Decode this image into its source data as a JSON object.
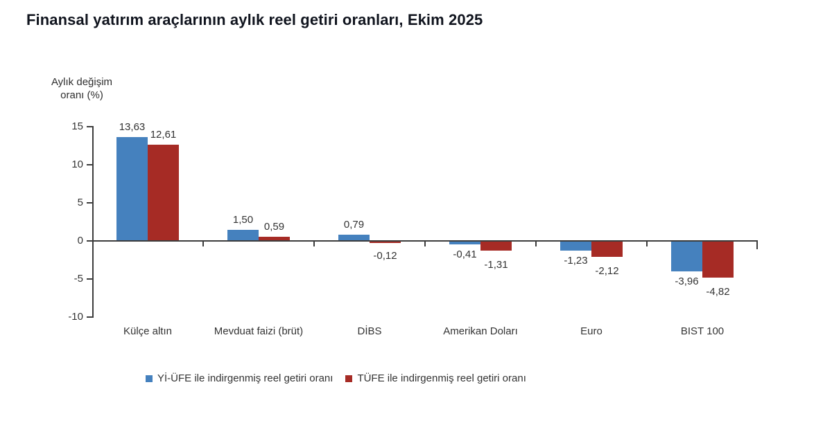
{
  "title": "Finansal yatırım araçlarının aylık reel getiri oranları, Ekim 2025",
  "chart_data": {
    "type": "bar",
    "title": "Finansal yatırım araçlarının aylık reel getiri oranları, Ekim 2025",
    "ylabel_lines": [
      "Aylık değişim",
      "oranı (%)"
    ],
    "decimal_separator": ",",
    "categories": [
      "Külçe altın",
      "Mevduat faizi (brüt)",
      "DİBS",
      "Amerikan Doları",
      "Euro",
      "BIST 100"
    ],
    "series": [
      {
        "name": "Yİ-ÜFE ile indirgenmiş reel getiri oranı",
        "color": "#4581BE",
        "values": [
          13.63,
          1.5,
          0.79,
          -0.41,
          -1.23,
          -3.96
        ]
      },
      {
        "name": "TÜFE ile indirgenmiş reel getiri oranı",
        "color": "#A62B25",
        "values": [
          12.61,
          0.59,
          -0.12,
          -1.31,
          -2.12,
          -4.82
        ]
      }
    ],
    "y_ticks": [
      15,
      10,
      5,
      0,
      -5,
      -10
    ],
    "ylim": [
      -10,
      15
    ],
    "grid": false,
    "legend_position": "bottom",
    "axis_color": "#3C3C3C",
    "text_color": "#333333"
  }
}
